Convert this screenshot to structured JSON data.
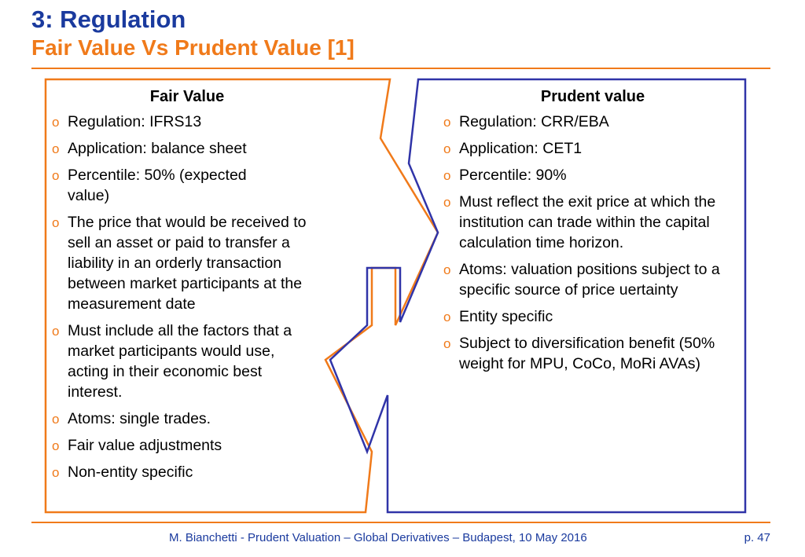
{
  "header": {
    "title": "3: Regulation",
    "subtitle": "Fair Value Vs Prudent Value [1]"
  },
  "colors": {
    "title": "#1a3a9e",
    "accent": "#f07a1a",
    "fair_outline": "#f07a1a",
    "prudent_outline": "#3034a8"
  },
  "bullet_icon": "hollow-circle",
  "fair_value": {
    "heading": "Fair Value",
    "items": [
      "Regulation: IFRS13",
      "Application: balance sheet",
      "Percentile: 50% (expected value)",
      "The price that would be received to sell an asset or paid to transfer a liability in an orderly transaction between market participants at the measurement date",
      "Must include all the factors that a market participants would use, acting in their economic best interest.",
      "Atoms: single trades.",
      "Fair value adjustments",
      "Non-entity specific"
    ]
  },
  "prudent_value": {
    "heading": "Prudent value",
    "items": [
      "Regulation: CRR/EBA",
      "Application: CET1",
      "Percentile: 90%",
      "Must reflect the exit price at which the institution can trade within the capital calculation time horizon.",
      "Atoms: valuation positions subject to a specific source of price uertainty",
      "Entity specific",
      "Subject to diversification benefit (50% weight for MPU, CoCo, MoRi AVAs)"
    ]
  },
  "footer": {
    "text": "M. Bianchetti - Prudent Valuation – Global Derivatives – Budapest, 10 May 2016",
    "page": "p. 47"
  }
}
